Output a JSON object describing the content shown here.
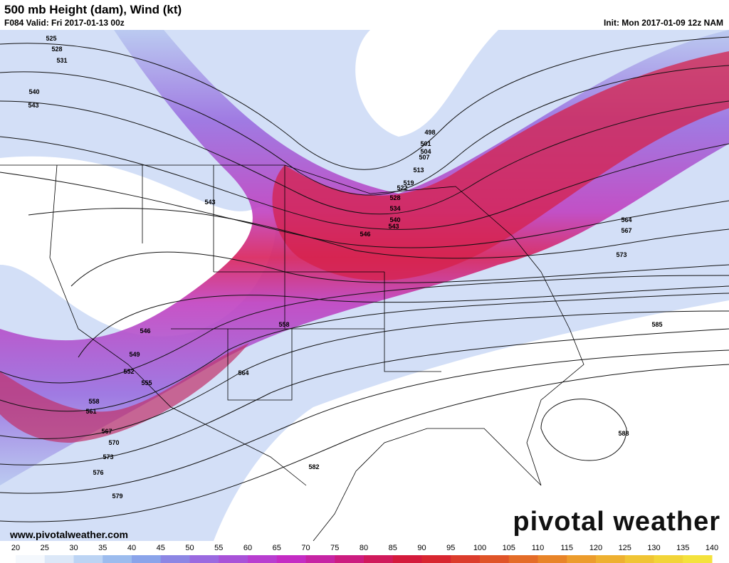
{
  "header": {
    "title": "500 mb Height (dam), Wind (kt)",
    "valid": "F084 Valid: Fri 2017-01-13 00z",
    "init": "Init: Mon 2017-01-09 12z NAM"
  },
  "height_labels": [
    525,
    528,
    531,
    540,
    543,
    498,
    501,
    504,
    507,
    513,
    519,
    522,
    528,
    534,
    540,
    543,
    543,
    546,
    564,
    567,
    573,
    546,
    549,
    552,
    555,
    558,
    561,
    567,
    570,
    573,
    576,
    579,
    558,
    564,
    582,
    585,
    588
  ],
  "footer": {
    "website": "www.pivotalweather.com",
    "logo": "pivotal weather"
  },
  "colorbar": {
    "ticks": [
      20,
      25,
      30,
      35,
      40,
      45,
      50,
      55,
      60,
      65,
      70,
      75,
      80,
      85,
      90,
      95,
      100,
      105,
      110,
      115,
      120,
      125,
      130,
      135,
      140
    ],
    "colors": [
      "#f4f8fd",
      "#dce8f8",
      "#bcd4f4",
      "#9cbcee",
      "#8aa4ea",
      "#8c86e4",
      "#9a6ae0",
      "#a852d8",
      "#b83ed0",
      "#c42cc4",
      "#c624a4",
      "#cc1c80",
      "#d01a5c",
      "#d41a3c",
      "#d82630",
      "#dc3c2c",
      "#e05428",
      "#e46c28",
      "#e88428",
      "#ec9c2c",
      "#eeb030",
      "#f0c434",
      "#f2d438",
      "#f4e23c"
    ]
  }
}
